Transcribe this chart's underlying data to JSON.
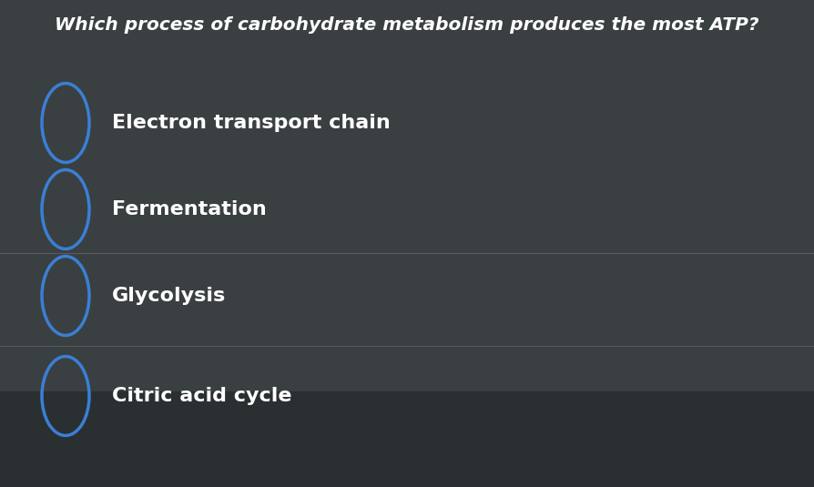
{
  "title": "Which process of carbohydrate metabolism produces the most ATP?",
  "options": [
    "Electron transport chain",
    "Fermentation",
    "Glycolysis",
    "Citric acid cycle"
  ],
  "bg_color": "#3a3f42",
  "bg_color_bottom": "#2a2f32",
  "title_color": "#ffffff",
  "option_text_color": "#ffffff",
  "circle_color": "#3a7fd5",
  "title_fontsize": 14.5,
  "option_fontsize": 16,
  "divider_color": "#606468",
  "fig_width": 8.94,
  "fig_height": 5.35,
  "dpi": 100
}
